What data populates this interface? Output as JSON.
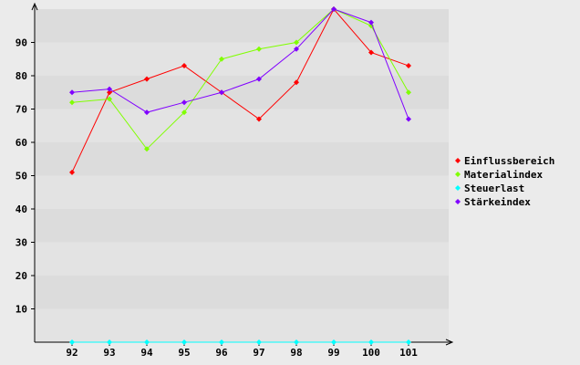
{
  "chart_data": {
    "type": "line",
    "categories": [
      "92",
      "93",
      "94",
      "95",
      "96",
      "97",
      "98",
      "99",
      "100",
      "101"
    ],
    "ylim": [
      0,
      100
    ],
    "yticks": [
      10,
      20,
      30,
      40,
      50,
      60,
      70,
      80,
      90
    ],
    "grid": "horizontal bands",
    "legend_position": "right",
    "series": [
      {
        "name": "Einflussbereich",
        "color": "#ff0000",
        "values": [
          51,
          75,
          79,
          83,
          75,
          67,
          78,
          100,
          87,
          83
        ]
      },
      {
        "name": "Materialindex",
        "color": "#80ff00",
        "values": [
          72,
          73,
          58,
          69,
          85,
          88,
          90,
          100,
          95,
          75
        ]
      },
      {
        "name": "Steuerlast",
        "color": "#00ffff",
        "values": [
          0,
          0,
          0,
          0,
          0,
          0,
          0,
          0,
          0,
          0
        ]
      },
      {
        "name": "Stärkeindex",
        "color": "#8000ff",
        "values": [
          75,
          76,
          69,
          72,
          75,
          79,
          88,
          100,
          96,
          67
        ]
      }
    ]
  }
}
